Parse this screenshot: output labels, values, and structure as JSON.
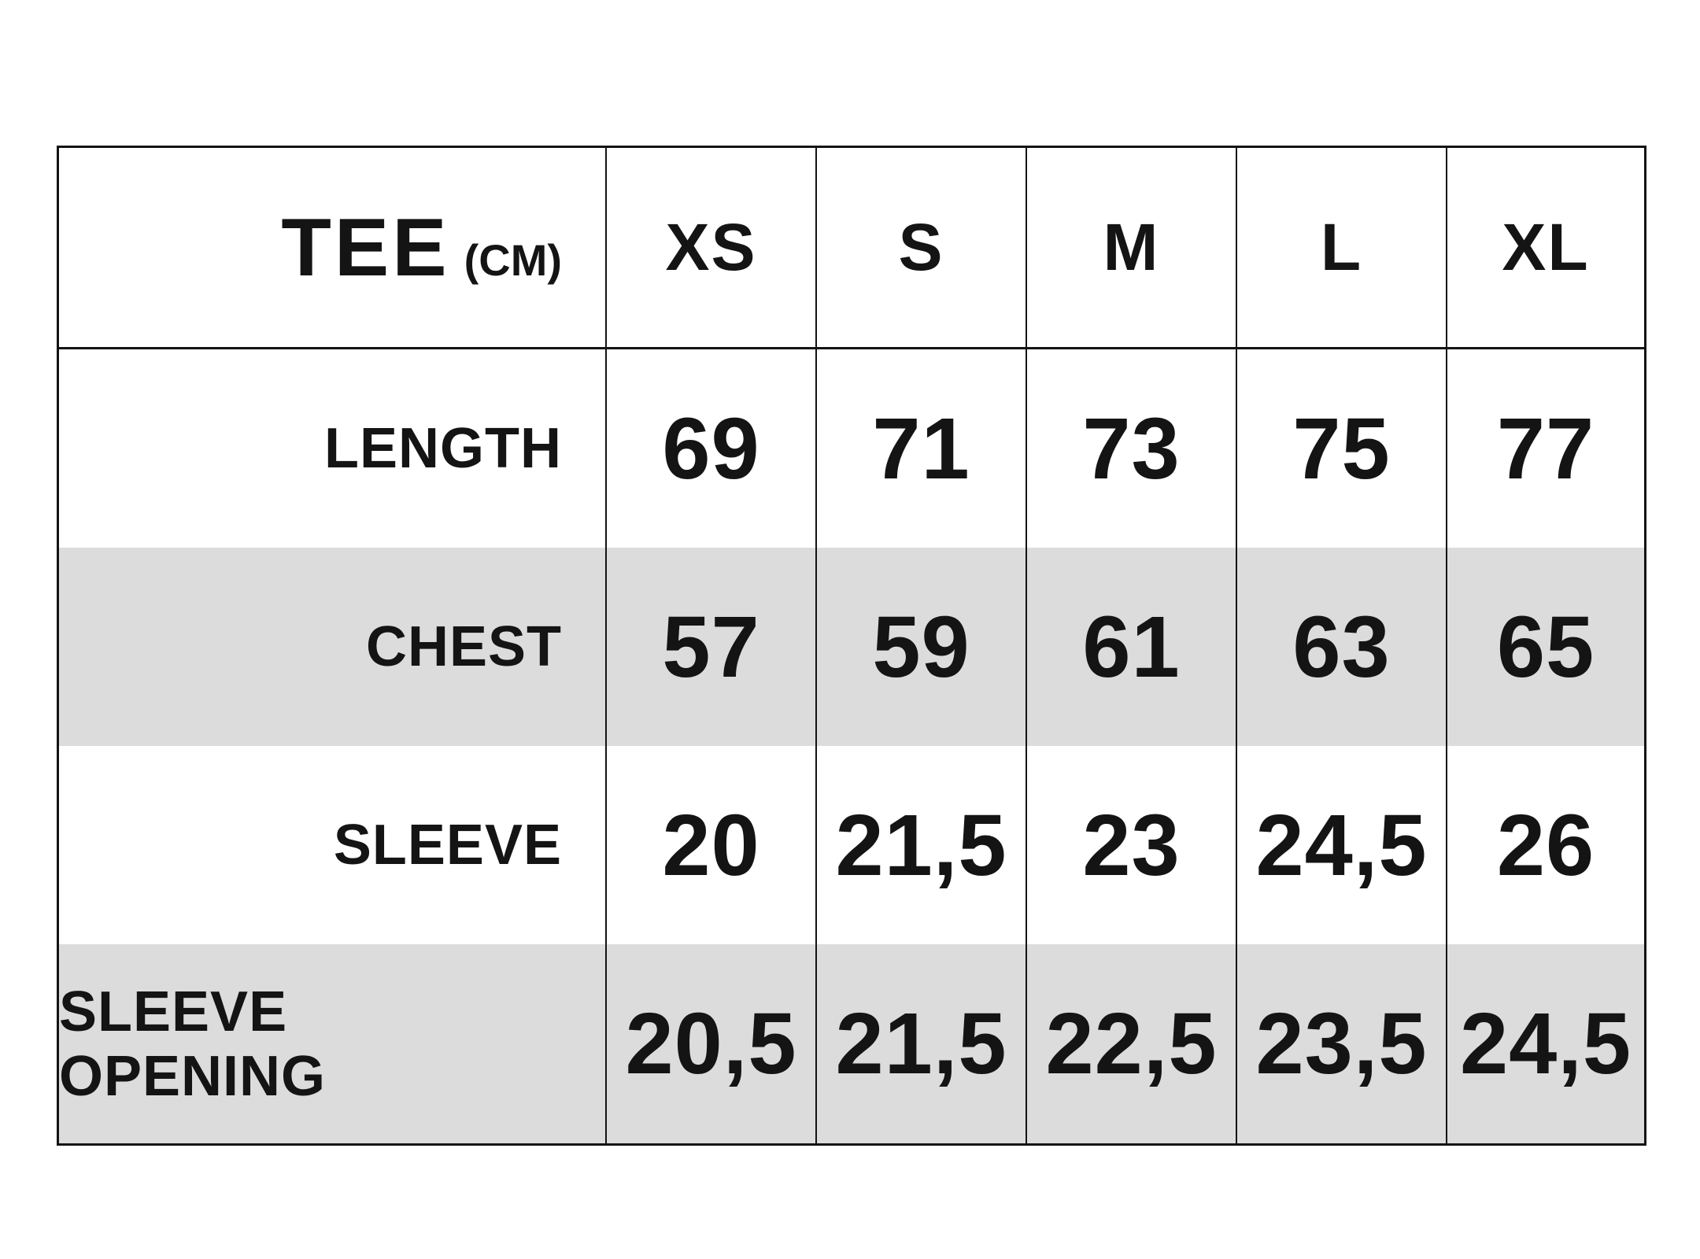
{
  "chart_data": {
    "type": "table",
    "title": "TEE",
    "unit_label": "(CM)",
    "columns": [
      "XS",
      "S",
      "M",
      "L",
      "XL"
    ],
    "rows": [
      {
        "label": "LENGTH",
        "values": [
          "69",
          "71",
          "73",
          "75",
          "77"
        ]
      },
      {
        "label": "CHEST",
        "values": [
          "57",
          "59",
          "61",
          "63",
          "65"
        ]
      },
      {
        "label": "SLEEVE",
        "values": [
          "20",
          "21,5",
          "23",
          "24,5",
          "26"
        ]
      },
      {
        "label": "SLEEVE OPENING",
        "values": [
          "20,5",
          "21,5",
          "22,5",
          "23,5",
          "24,5"
        ]
      }
    ],
    "layout": {
      "shaded_rows": [
        "CHEST",
        "SLEEVE OPENING"
      ],
      "grid_lines": "vertical column rules only; single horizontal rule under header; solid outer border",
      "label_alignment": "right",
      "value_alignment": "center"
    },
    "colors": {
      "row_shade": "#dcdcdc",
      "border": "#141414",
      "text": "#141414",
      "background": "#ffffff"
    }
  }
}
